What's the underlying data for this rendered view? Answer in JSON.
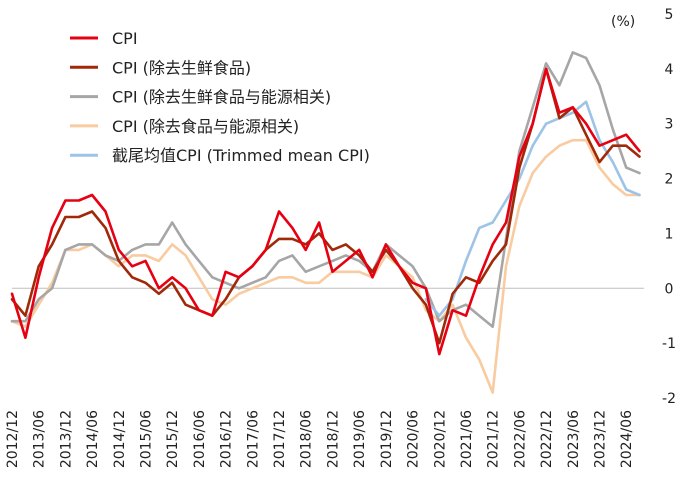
{
  "chart_data": {
    "type": "line",
    "unit_label": "(%)",
    "ylim": [
      -2,
      5
    ],
    "y_ticks": [
      -2,
      -1,
      0,
      1,
      2,
      3,
      4,
      5
    ],
    "x_labels": [
      "2012/12",
      "2013/06",
      "2013/12",
      "2014/06",
      "2014/12",
      "2015/06",
      "2015/12",
      "2016/06",
      "2016/12",
      "2017/06",
      "2017/12",
      "2018/06",
      "2018/12",
      "2019/06",
      "2019/12",
      "2020/06",
      "2020/12",
      "2021/06",
      "2021/12",
      "2022/06",
      "2022/12",
      "2023/06",
      "2023/12",
      "2024/06"
    ],
    "grid": false,
    "legend_position": "top-left",
    "series": [
      {
        "name": "CPI",
        "color": "#e60012",
        "points": [
          [
            "2012/12",
            -0.1
          ],
          [
            "2013/03",
            -0.9
          ],
          [
            "2013/06",
            0.2
          ],
          [
            "2013/09",
            1.1
          ],
          [
            "2013/12",
            1.6
          ],
          [
            "2014/03",
            1.6
          ],
          [
            "2014/06",
            1.7
          ],
          [
            "2014/09",
            1.4
          ],
          [
            "2014/12",
            0.7
          ],
          [
            "2015/03",
            0.4
          ],
          [
            "2015/06",
            0.5
          ],
          [
            "2015/09",
            0.0
          ],
          [
            "2015/12",
            0.2
          ],
          [
            "2016/03",
            0.0
          ],
          [
            "2016/06",
            -0.4
          ],
          [
            "2016/09",
            -0.5
          ],
          [
            "2016/12",
            0.3
          ],
          [
            "2017/03",
            0.2
          ],
          [
            "2017/06",
            0.4
          ],
          [
            "2017/09",
            0.7
          ],
          [
            "2017/12",
            1.4
          ],
          [
            "2018/03",
            1.1
          ],
          [
            "2018/06",
            0.7
          ],
          [
            "2018/09",
            1.2
          ],
          [
            "2018/12",
            0.3
          ],
          [
            "2019/03",
            0.5
          ],
          [
            "2019/06",
            0.7
          ],
          [
            "2019/09",
            0.2
          ],
          [
            "2019/12",
            0.8
          ],
          [
            "2020/03",
            0.4
          ],
          [
            "2020/06",
            0.1
          ],
          [
            "2020/09",
            0.0
          ],
          [
            "2020/12",
            -1.2
          ],
          [
            "2021/03",
            -0.4
          ],
          [
            "2021/06",
            -0.5
          ],
          [
            "2021/09",
            0.2
          ],
          [
            "2021/12",
            0.8
          ],
          [
            "2022/03",
            1.2
          ],
          [
            "2022/06",
            2.4
          ],
          [
            "2022/09",
            3.0
          ],
          [
            "2022/12",
            4.0
          ],
          [
            "2023/03",
            3.2
          ],
          [
            "2023/06",
            3.3
          ],
          [
            "2023/09",
            3.0
          ],
          [
            "2023/12",
            2.6
          ],
          [
            "2024/03",
            2.7
          ],
          [
            "2024/06",
            2.8
          ],
          [
            "2024/09",
            2.5
          ]
        ]
      },
      {
        "name": "CPI (除去生鲜食品)",
        "color": "#a0290a",
        "points": [
          [
            "2012/12",
            -0.2
          ],
          [
            "2013/03",
            -0.5
          ],
          [
            "2013/06",
            0.4
          ],
          [
            "2013/09",
            0.8
          ],
          [
            "2013/12",
            1.3
          ],
          [
            "2014/03",
            1.3
          ],
          [
            "2014/06",
            1.4
          ],
          [
            "2014/09",
            1.1
          ],
          [
            "2014/12",
            0.5
          ],
          [
            "2015/03",
            0.2
          ],
          [
            "2015/06",
            0.1
          ],
          [
            "2015/09",
            -0.1
          ],
          [
            "2015/12",
            0.1
          ],
          [
            "2016/03",
            -0.3
          ],
          [
            "2016/06",
            -0.4
          ],
          [
            "2016/09",
            -0.5
          ],
          [
            "2016/12",
            -0.2
          ],
          [
            "2017/03",
            0.2
          ],
          [
            "2017/06",
            0.4
          ],
          [
            "2017/09",
            0.7
          ],
          [
            "2017/12",
            0.9
          ],
          [
            "2018/03",
            0.9
          ],
          [
            "2018/06",
            0.8
          ],
          [
            "2018/09",
            1.0
          ],
          [
            "2018/12",
            0.7
          ],
          [
            "2019/03",
            0.8
          ],
          [
            "2019/06",
            0.6
          ],
          [
            "2019/09",
            0.3
          ],
          [
            "2019/12",
            0.7
          ],
          [
            "2020/03",
            0.4
          ],
          [
            "2020/06",
            0.0
          ],
          [
            "2020/09",
            -0.3
          ],
          [
            "2020/12",
            -1.0
          ],
          [
            "2021/03",
            -0.1
          ],
          [
            "2021/06",
            0.2
          ],
          [
            "2021/09",
            0.1
          ],
          [
            "2021/12",
            0.5
          ],
          [
            "2022/03",
            0.8
          ],
          [
            "2022/06",
            2.2
          ],
          [
            "2022/09",
            3.0
          ],
          [
            "2022/12",
            4.0
          ],
          [
            "2023/03",
            3.1
          ],
          [
            "2023/06",
            3.3
          ],
          [
            "2023/09",
            2.8
          ],
          [
            "2023/12",
            2.3
          ],
          [
            "2024/03",
            2.6
          ],
          [
            "2024/06",
            2.6
          ],
          [
            "2024/09",
            2.4
          ]
        ]
      },
      {
        "name": "CPI (除去生鲜食品与能源相关)",
        "color": "#a6a6a6",
        "points": [
          [
            "2012/12",
            -0.6
          ],
          [
            "2013/03",
            -0.6
          ],
          [
            "2013/06",
            -0.2
          ],
          [
            "2013/09",
            0.0
          ],
          [
            "2013/12",
            0.7
          ],
          [
            "2014/03",
            0.8
          ],
          [
            "2014/06",
            0.8
          ],
          [
            "2014/09",
            0.6
          ],
          [
            "2014/12",
            0.5
          ],
          [
            "2015/03",
            0.7
          ],
          [
            "2015/06",
            0.8
          ],
          [
            "2015/09",
            0.8
          ],
          [
            "2015/12",
            1.2
          ],
          [
            "2016/03",
            0.8
          ],
          [
            "2016/06",
            0.5
          ],
          [
            "2016/09",
            0.2
          ],
          [
            "2016/12",
            0.1
          ],
          [
            "2017/03",
            0.0
          ],
          [
            "2017/06",
            0.1
          ],
          [
            "2017/09",
            0.2
          ],
          [
            "2017/12",
            0.5
          ],
          [
            "2018/03",
            0.6
          ],
          [
            "2018/06",
            0.3
          ],
          [
            "2018/09",
            0.4
          ],
          [
            "2018/12",
            0.5
          ],
          [
            "2019/03",
            0.6
          ],
          [
            "2019/06",
            0.5
          ],
          [
            "2019/09",
            0.3
          ],
          [
            "2019/12",
            0.8
          ],
          [
            "2020/03",
            0.6
          ],
          [
            "2020/06",
            0.4
          ],
          [
            "2020/09",
            0.0
          ],
          [
            "2020/12",
            -0.6
          ],
          [
            "2021/03",
            -0.4
          ],
          [
            "2021/06",
            -0.3
          ],
          [
            "2021/09",
            -0.5
          ],
          [
            "2021/12",
            -0.7
          ],
          [
            "2022/03",
            0.9
          ],
          [
            "2022/06",
            2.5
          ],
          [
            "2022/09",
            3.3
          ],
          [
            "2022/12",
            4.1
          ],
          [
            "2023/03",
            3.7
          ],
          [
            "2023/06",
            4.3
          ],
          [
            "2023/09",
            4.2
          ],
          [
            "2023/12",
            3.7
          ],
          [
            "2024/03",
            2.9
          ],
          [
            "2024/06",
            2.2
          ],
          [
            "2024/09",
            2.1
          ]
        ]
      },
      {
        "name": "CPI (除去食品与能源相关)",
        "color": "#f8cba0",
        "points": [
          [
            "2012/12",
            -0.6
          ],
          [
            "2013/03",
            -0.7
          ],
          [
            "2013/06",
            -0.3
          ],
          [
            "2013/09",
            0.1
          ],
          [
            "2013/12",
            0.7
          ],
          [
            "2014/03",
            0.7
          ],
          [
            "2014/06",
            0.8
          ],
          [
            "2014/09",
            0.6
          ],
          [
            "2014/12",
            0.4
          ],
          [
            "2015/03",
            0.6
          ],
          [
            "2015/06",
            0.6
          ],
          [
            "2015/09",
            0.5
          ],
          [
            "2015/12",
            0.8
          ],
          [
            "2016/03",
            0.6
          ],
          [
            "2016/06",
            0.2
          ],
          [
            "2016/09",
            -0.2
          ],
          [
            "2016/12",
            -0.3
          ],
          [
            "2017/03",
            -0.1
          ],
          [
            "2017/06",
            0.0
          ],
          [
            "2017/09",
            0.1
          ],
          [
            "2017/12",
            0.2
          ],
          [
            "2018/03",
            0.2
          ],
          [
            "2018/06",
            0.1
          ],
          [
            "2018/09",
            0.1
          ],
          [
            "2018/12",
            0.3
          ],
          [
            "2019/03",
            0.3
          ],
          [
            "2019/06",
            0.3
          ],
          [
            "2019/09",
            0.2
          ],
          [
            "2019/12",
            0.6
          ],
          [
            "2020/03",
            0.4
          ],
          [
            "2020/06",
            0.2
          ],
          [
            "2020/09",
            -0.4
          ],
          [
            "2020/12",
            -0.6
          ],
          [
            "2021/03",
            -0.3
          ],
          [
            "2021/06",
            -0.9
          ],
          [
            "2021/09",
            -1.3
          ],
          [
            "2021/12",
            -1.9
          ],
          [
            "2022/03",
            0.4
          ],
          [
            "2022/06",
            1.5
          ],
          [
            "2022/09",
            2.1
          ],
          [
            "2022/12",
            2.4
          ],
          [
            "2023/03",
            2.6
          ],
          [
            "2023/06",
            2.7
          ],
          [
            "2023/09",
            2.7
          ],
          [
            "2023/12",
            2.2
          ],
          [
            "2024/03",
            1.9
          ],
          [
            "2024/06",
            1.7
          ],
          [
            "2024/09",
            1.7
          ]
        ]
      },
      {
        "name": "截尾均值CPI (Trimmed mean CPI)",
        "color": "#9dc3e6",
        "points": [
          [
            "2020/09",
            -0.2
          ],
          [
            "2020/12",
            -0.5
          ],
          [
            "2021/03",
            -0.2
          ],
          [
            "2021/06",
            0.5
          ],
          [
            "2021/09",
            1.1
          ],
          [
            "2021/12",
            1.2
          ],
          [
            "2022/03",
            1.6
          ],
          [
            "2022/06",
            2.0
          ],
          [
            "2022/09",
            2.6
          ],
          [
            "2022/12",
            3.0
          ],
          [
            "2023/03",
            3.1
          ],
          [
            "2023/06",
            3.2
          ],
          [
            "2023/09",
            3.4
          ],
          [
            "2023/12",
            2.7
          ],
          [
            "2024/03",
            2.3
          ],
          [
            "2024/06",
            1.8
          ],
          [
            "2024/09",
            1.7
          ]
        ]
      }
    ]
  }
}
